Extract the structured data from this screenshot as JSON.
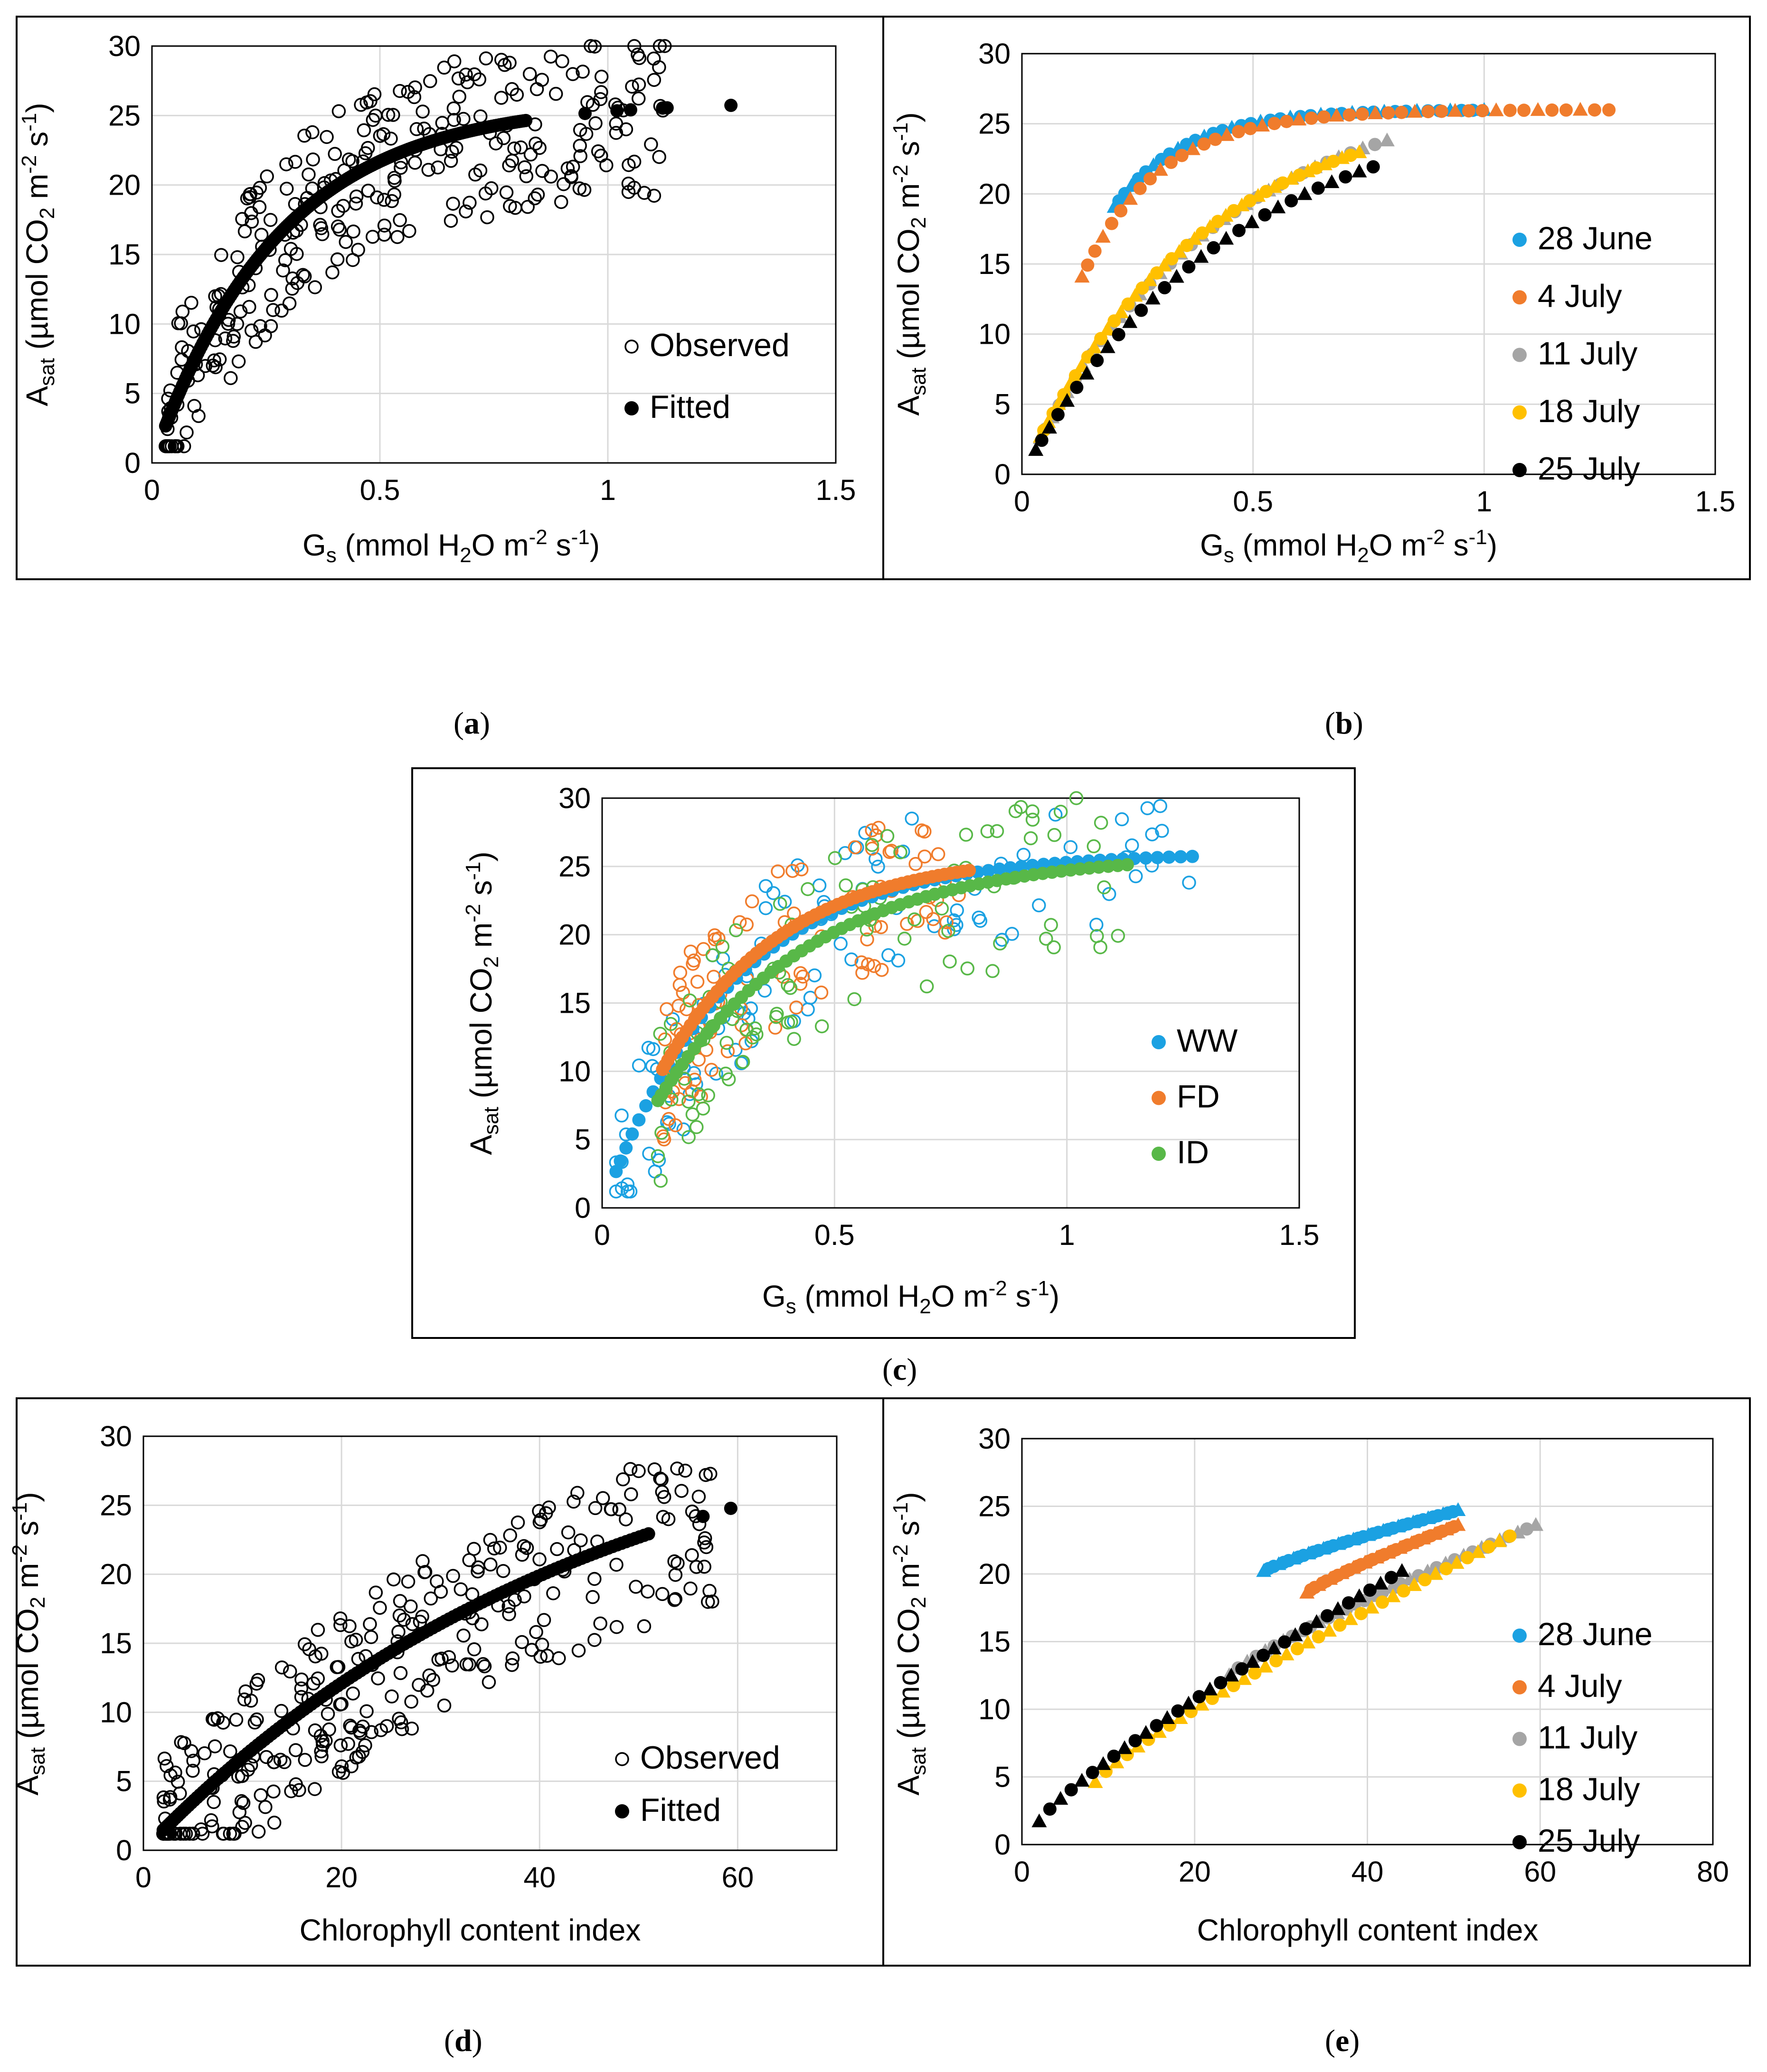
{
  "colors": {
    "blue": "#1BA1E2",
    "orange": "#F07C2C",
    "gray": "#A5A5A5",
    "yellow": "#FFC000",
    "black": "#000000",
    "green": "#58B848",
    "grid": "#D9D9D9"
  },
  "chart_data": [
    {
      "id": "a",
      "type": "scatter",
      "caption": {
        "open": "(",
        "letter": "a",
        "close": ")"
      },
      "xlabel": {
        "main": "G",
        "sub": "s",
        "rest": " (mmol H",
        "sub2": "2",
        "rest2": "O m",
        "sup1": "-2",
        "rest3": " s",
        "sup2": "-1",
        "end": ")"
      },
      "ylabel": {
        "main": "A",
        "sub": "sat",
        "rest": " (µmol CO",
        "sub2": "2",
        "rest2": " m",
        "sup1": "-2",
        "rest3": " s",
        "sup2": "-1",
        "end": ")"
      },
      "xlim": [
        0,
        1.5
      ],
      "ylim": [
        0,
        30
      ],
      "xticks": [
        0,
        0.5,
        1,
        1.5
      ],
      "xtick_labels": [
        "0",
        "0.5",
        "1",
        "1.5"
      ],
      "yticks": [
        0,
        5,
        10,
        15,
        20,
        25,
        30
      ],
      "ytick_labels": [
        "0",
        "5",
        "10",
        "15",
        "20",
        "25",
        "30"
      ],
      "legend_position": "bottom-right",
      "series": [
        {
          "name": "Observed",
          "marker": "open-circle",
          "color": "black",
          "gen": {
            "kind": "obs",
            "xmin": 0.03,
            "xmax": 1.13,
            "asym": 26,
            "k": 3.6,
            "n": 300,
            "spread": 6,
            "seed": 11
          }
        },
        {
          "name": "Fitted",
          "marker": "circle",
          "color": "black",
          "gen": {
            "kind": "fit",
            "xmin": 0.03,
            "xmax": 0.82,
            "asym": 26,
            "k": 3.6,
            "n": 180,
            "extra_x": [
              0.95,
              1.02,
              1.05,
              1.12,
              1.13,
              1.27
            ]
          }
        }
      ]
    },
    {
      "id": "b",
      "type": "scatter",
      "caption": {
        "open": "(",
        "letter": "b",
        "close": ")"
      },
      "xlabel": {
        "main": "G",
        "sub": "s",
        "rest": " (mmol H",
        "sub2": "2",
        "rest2": "O m",
        "sup1": "-2",
        "rest3": " s",
        "sup2": "-1",
        "end": ")"
      },
      "ylabel": {
        "main": "A",
        "sub": "sat",
        "rest": " (µmol CO",
        "sub2": "2",
        "rest2": " m",
        "sup1": "-2",
        "rest3": " s",
        "sup2": "-1",
        "end": ")"
      },
      "xlim": [
        0,
        1.5
      ],
      "ylim": [
        0,
        30
      ],
      "xticks": [
        0,
        0.5,
        1,
        1.5
      ],
      "xtick_labels": [
        "0",
        "0.5",
        "1",
        "1.5"
      ],
      "yticks": [
        0,
        5,
        10,
        15,
        20,
        25,
        30
      ],
      "ytick_labels": [
        "0",
        "5",
        "10",
        "15",
        "20",
        "25",
        "30"
      ],
      "legend_position": "right",
      "series": [
        {
          "name": "28 June",
          "color": "blue",
          "gen": {
            "kind": "fit",
            "xmin": 0.2,
            "xmax": 1.0,
            "asym": 26,
            "k": 6.6,
            "n": 40,
            "tri_every": 3
          }
        },
        {
          "name": "4 July",
          "color": "orange",
          "gen": {
            "kind": "fit",
            "xmin": 0.13,
            "xmax": 1.27,
            "asym": 26,
            "k": 6.0,
            "n": 45,
            "tri_every": 3
          }
        },
        {
          "name": "11 July",
          "color": "gray",
          "gen": {
            "kind": "fit",
            "xmin": 0.04,
            "xmax": 0.79,
            "asym": 28,
            "k": 2.4,
            "n": 35,
            "tri_every": 2
          }
        },
        {
          "name": "18 July",
          "color": "yellow",
          "gen": {
            "kind": "fit",
            "xmin": 0.04,
            "xmax": 0.73,
            "asym": 27,
            "k": 2.6,
            "n": 45,
            "tri_every": 2
          }
        },
        {
          "name": "25 July",
          "color": "black",
          "gen": {
            "kind": "fit",
            "xmin": 0.03,
            "xmax": 0.76,
            "asym": 27,
            "k": 2.2,
            "n": 30,
            "tri_every": 2
          }
        }
      ]
    },
    {
      "id": "c",
      "type": "scatter",
      "caption": {
        "open": "(",
        "letter": "c",
        "close": ")"
      },
      "xlabel": {
        "main": "G",
        "sub": "s",
        "rest": " (mmol H",
        "sub2": "2",
        "rest2": "O m",
        "sup1": "-2",
        "rest3": " s",
        "sup2": "-1",
        "end": ")"
      },
      "ylabel": {
        "main": "A",
        "sub": "sat",
        "rest": " (µmol CO",
        "sub2": "2",
        "rest2": " m",
        "sup1": "-2",
        "rest3": " s",
        "sup2": "-1",
        "end": ")"
      },
      "xlim": [
        0,
        1.5
      ],
      "ylim": [
        0,
        30
      ],
      "xticks": [
        0,
        0.5,
        1,
        1.5
      ],
      "xtick_labels": [
        "0",
        "0.5",
        "1",
        "1.5"
      ],
      "yticks": [
        0,
        5,
        10,
        15,
        20,
        25,
        30
      ],
      "ytick_labels": [
        "0",
        "5",
        "10",
        "15",
        "20",
        "25",
        "30"
      ],
      "legend_position": "right",
      "series": [
        {
          "name": "WW",
          "color": "blue",
          "gen": {
            "kind": "both",
            "xmin": 0.03,
            "xmax": 1.27,
            "asym": 26,
            "k": 3.6,
            "n": 60,
            "nobs": 100,
            "spread": 6,
            "seed": 21
          }
        },
        {
          "name": "FD",
          "color": "orange",
          "gen": {
            "kind": "both",
            "xmin": 0.13,
            "xmax": 0.79,
            "asym": 26,
            "k": 3.8,
            "n": 60,
            "nobs": 100,
            "spread": 6,
            "seed": 33
          }
        },
        {
          "name": "ID",
          "color": "green",
          "gen": {
            "kind": "both",
            "xmin": 0.12,
            "xmax": 1.13,
            "asym": 26,
            "k": 3.0,
            "n": 60,
            "nobs": 100,
            "spread": 6,
            "seed": 45
          }
        }
      ]
    },
    {
      "id": "d",
      "type": "scatter",
      "caption": {
        "open": "(",
        "letter": "d",
        "close": ")"
      },
      "xlabel_plain": "Chlorophyll content index",
      "ylabel": {
        "main": "A",
        "sub": "sat",
        "rest": " (µmol CO",
        "sub2": "2",
        "rest2": " m",
        "sup1": "-2",
        "rest3": " s",
        "sup2": "-1",
        "end": ")"
      },
      "xlim": [
        0,
        70
      ],
      "ylim": [
        0,
        30
      ],
      "xticks": [
        0,
        20,
        40,
        60
      ],
      "xtick_labels": [
        "0",
        "20",
        "40",
        "60"
      ],
      "yticks": [
        0,
        5,
        10,
        15,
        20,
        25,
        30
      ],
      "ytick_labels": [
        "0",
        "5",
        "10",
        "15",
        "20",
        "25",
        "30"
      ],
      "legend_position": "bottom-right",
      "series": [
        {
          "name": "Observed",
          "marker": "open-circle",
          "color": "black",
          "gen": {
            "kind": "obs",
            "xmin": 2,
            "xmax": 59,
            "asym": 34,
            "k": 0.022,
            "n": 300,
            "spread": 6,
            "seed": 57
          }
        },
        {
          "name": "Fitted",
          "marker": "circle",
          "color": "black",
          "gen": {
            "kind": "fit",
            "xmin": 2,
            "xmax": 51,
            "asym": 34,
            "k": 0.022,
            "n": 130,
            "extra_x": [
              56.5,
              59.3
            ]
          }
        }
      ]
    },
    {
      "id": "e",
      "type": "scatter",
      "caption": {
        "open": "(",
        "letter": "e",
        "close": ")"
      },
      "xlabel_plain": "Chlorophyll content index",
      "ylabel": {
        "main": "A",
        "sub": "sat",
        "rest": " (µmol CO",
        "sub2": "2",
        "rest2": " m",
        "sup1": "-2",
        "rest3": " s",
        "sup2": "-1",
        "end": ")"
      },
      "xlim": [
        0,
        80
      ],
      "ylim": [
        0,
        30
      ],
      "xticks": [
        0,
        20,
        40,
        60,
        80
      ],
      "xtick_labels": [
        "0",
        "20",
        "40",
        "60",
        "80"
      ],
      "yticks": [
        0,
        5,
        10,
        15,
        20,
        25,
        30
      ],
      "ytick_labels": [
        "0",
        "5",
        "10",
        "15",
        "20",
        "25",
        "30"
      ],
      "legend_position": "right",
      "series": [
        {
          "name": "28 June",
          "color": "blue",
          "gen": {
            "kind": "lin",
            "xmin": 28,
            "xmax": 50.5,
            "ymin": 20.2,
            "ymax": 24.7,
            "n": 40,
            "tri_every": 3
          }
        },
        {
          "name": "4 July",
          "color": "orange",
          "gen": {
            "kind": "lin",
            "xmin": 33,
            "xmax": 50.5,
            "ymin": 18.6,
            "ymax": 23.6,
            "n": 40,
            "tri_every": 3
          }
        },
        {
          "name": "11 July",
          "color": "gray",
          "gen": {
            "kind": "lin",
            "xmin": 24,
            "xmax": 59.5,
            "ymin": 12.5,
            "ymax": 23.6,
            "n": 35,
            "tri_every": 2
          }
        },
        {
          "name": "18 July",
          "color": "yellow",
          "gen": {
            "kind": "lin",
            "xmin": 8.5,
            "xmax": 56.5,
            "ymin": 4.6,
            "ymax": 22.8,
            "n": 40,
            "tri_every": 2
          }
        },
        {
          "name": "25 July",
          "color": "black",
          "gen": {
            "kind": "lin",
            "xmin": 2,
            "xmax": 44,
            "ymin": 1.7,
            "ymax": 20.2,
            "n": 35,
            "tri_every": 2
          }
        }
      ]
    }
  ]
}
